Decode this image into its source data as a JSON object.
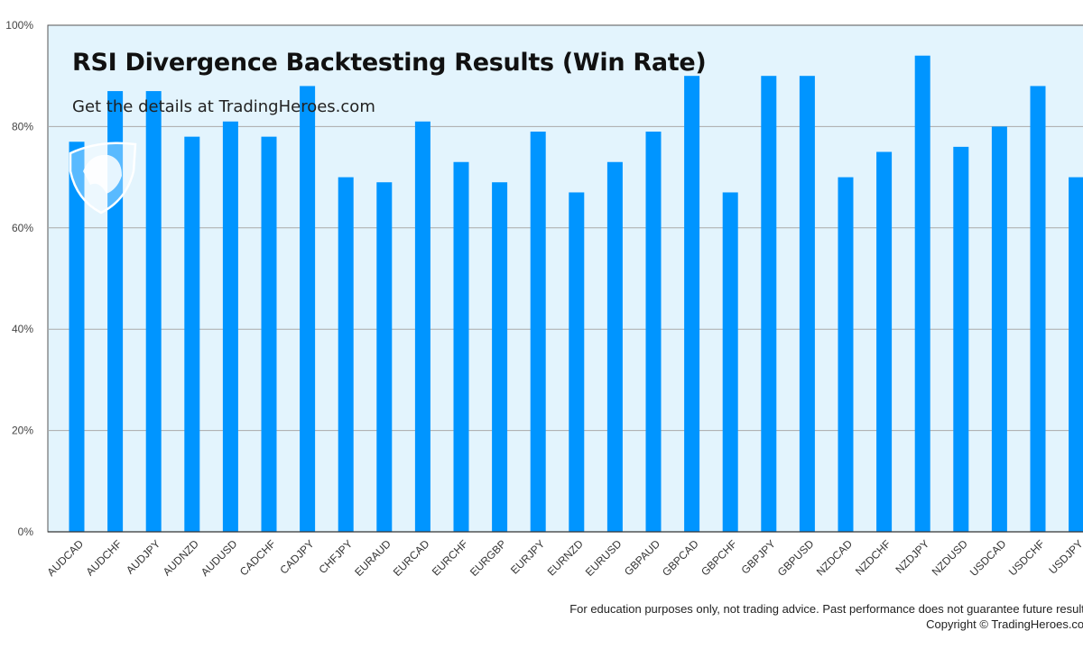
{
  "chart_data": {
    "type": "bar",
    "title": "RSI Divergence Backtesting Results (Win Rate)",
    "subtitle": "Get the details at TradingHeroes.com",
    "xlabel": "",
    "ylabel": "",
    "ylim": [
      0,
      100
    ],
    "yticks": [
      "0%",
      "20%",
      "40%",
      "60%",
      "80%",
      "100%"
    ],
    "ytick_values": [
      0,
      20,
      40,
      60,
      80,
      100
    ],
    "grid": true,
    "categories": [
      "AUDCAD",
      "AUDCHF",
      "AUDJPY",
      "AUDNZD",
      "AUDUSD",
      "CADCHF",
      "CADJPY",
      "CHFJPY",
      "EURAUD",
      "EURCAD",
      "EURCHF",
      "EURGBP",
      "EURJPY",
      "EURNZD",
      "EURUSD",
      "GBPAUD",
      "GBPCAD",
      "GBPCHF",
      "GBPJPY",
      "GBPUSD",
      "NZDCAD",
      "NZDCHF",
      "NZDJPY",
      "NZDUSD",
      "USDCAD",
      "USDCHF",
      "USDJPY"
    ],
    "values": [
      77,
      87,
      87,
      78,
      81,
      78,
      88,
      70,
      69,
      81,
      73,
      69,
      79,
      67,
      73,
      79,
      90,
      67,
      90,
      90,
      70,
      75,
      94,
      76,
      80,
      88,
      70
    ],
    "bar_color": "#0095FF",
    "plot_bg": "#E3F4FD"
  },
  "footer": {
    "disclaimer": "For education purposes only, not trading advice. Past performance does not guarantee future results.",
    "copyright": "Copyright © TradingHeroes.com"
  },
  "logo": {
    "name": "shield-logo"
  }
}
